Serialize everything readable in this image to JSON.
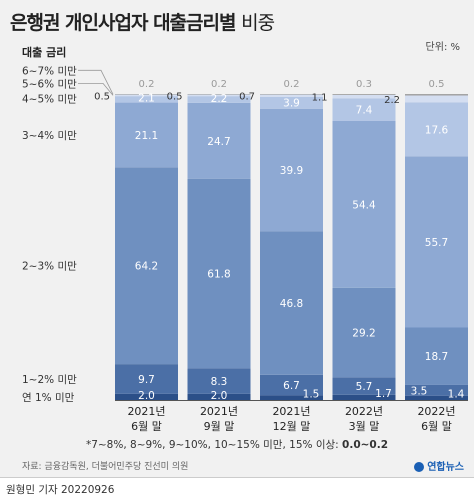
{
  "title": {
    "bold": "은행권 개인사업자 대출금리별",
    "light": "비중"
  },
  "unit": "단위: %",
  "legend_title": "대출 금리",
  "footnote": {
    "text": "*7~8%, 8~9%, 9~10%, 10~15% 미만, 15% 이상: ",
    "bold": "0.0~0.2"
  },
  "source": "자료: 금융감독원, 더불어민주당 진선미 의원",
  "credit": "원형민 기자  20220926",
  "logo": "연합뉴스",
  "colors": [
    "#2b4f88",
    "#4b6fa6",
    "#6f90c0",
    "#8ea9d3",
    "#b3c6e5",
    "#d4def1",
    "#a4a4a4"
  ],
  "chart_data": {
    "type": "bar",
    "stacked": true,
    "categories": [
      "2021년\n6월 말",
      "2021년\n9월 말",
      "2021년\n12월 말",
      "2022년\n3월 말",
      "2022년\n6월 말"
    ],
    "series": [
      {
        "name": "연 1% 미만",
        "values": [
          2.0,
          2.0,
          1.5,
          1.7,
          1.4
        ]
      },
      {
        "name": "1~2% 미만",
        "values": [
          9.7,
          8.3,
          6.7,
          5.7,
          3.5
        ]
      },
      {
        "name": "2~3% 미만",
        "values": [
          64.2,
          61.8,
          46.8,
          29.2,
          18.7
        ]
      },
      {
        "name": "3~4% 미만",
        "values": [
          21.1,
          24.7,
          39.9,
          54.4,
          55.7
        ]
      },
      {
        "name": "4~5% 미만",
        "values": [
          2.1,
          2.2,
          3.9,
          7.4,
          17.6
        ]
      },
      {
        "name": "5~6% 미만",
        "values": [
          0.5,
          0.5,
          0.7,
          1.1,
          2.2
        ]
      },
      {
        "name": "6~7% 미만",
        "values": [
          0.2,
          0.2,
          0.2,
          0.3,
          0.5
        ]
      }
    ],
    "ylim": [
      0,
      100
    ]
  }
}
